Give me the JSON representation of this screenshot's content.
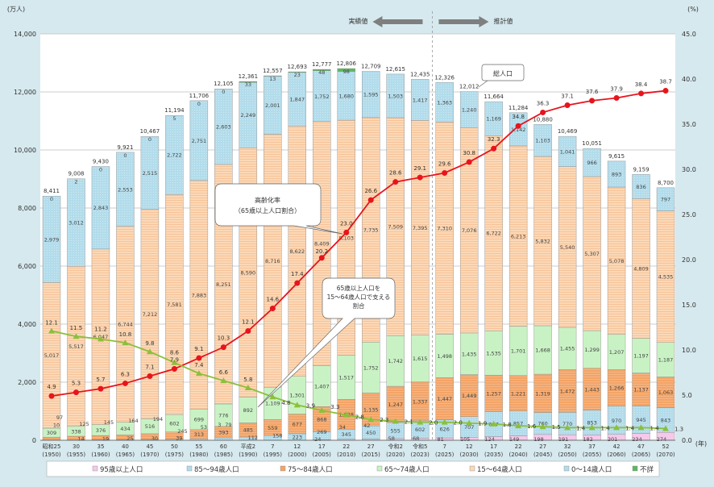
{
  "chart_data": {
    "type": "bar",
    "stacked": true,
    "left_axis_unit": "(万人)",
    "right_axis_unit": "(%)",
    "x_unit": "(年)",
    "ylim": [
      0,
      14000
    ],
    "y_ticks": [
      "0",
      "2,000",
      "4,000",
      "6,000",
      "8,000",
      "10,000",
      "12,000",
      "14,000"
    ],
    "y2lim": [
      0,
      45
    ],
    "y2_ticks": [
      "0.0",
      "5.0",
      "10.0",
      "15.0",
      "20.0",
      "25.0",
      "30.0",
      "35.0",
      "40.0",
      "45.0"
    ],
    "grid": true,
    "legend_position": "bottom",
    "header": {
      "actual": "実績値",
      "projected": "推計値"
    },
    "callouts": {
      "total": "総人口",
      "aging_rate": [
        "高齢化率",
        "（65歳以上人口割合）"
      ],
      "support_ratio": [
        "65歳以上人口を",
        "15～64歳人口で支える",
        "割合"
      ]
    },
    "categories": [
      [
        "昭和25",
        "(1950)"
      ],
      [
        "30",
        "(1955)"
      ],
      [
        "35",
        "(1960)"
      ],
      [
        "40",
        "(1965)"
      ],
      [
        "45",
        "(1970)"
      ],
      [
        "50",
        "(1975)"
      ],
      [
        "55",
        "(1980)"
      ],
      [
        "60",
        "(1985)"
      ],
      [
        "平成2",
        "(1990)"
      ],
      [
        "7",
        "(1995)"
      ],
      [
        "12",
        "(2000)"
      ],
      [
        "17",
        "(2005)"
      ],
      [
        "22",
        "(2010)"
      ],
      [
        "27",
        "(2015)"
      ],
      [
        "令和2",
        "(2020)"
      ],
      [
        "令和5",
        "(2023)"
      ],
      [
        "7",
        "(2025)"
      ],
      [
        "12",
        "(2030)"
      ],
      [
        "17",
        "(2035)"
      ],
      [
        "22",
        "(2040)"
      ],
      [
        "27",
        "(2045)"
      ],
      [
        "32",
        "(2050)"
      ],
      [
        "37",
        "(2055)"
      ],
      [
        "42",
        "(2060)"
      ],
      [
        "47",
        "(2065)"
      ],
      [
        "52",
        "(2070)"
      ]
    ],
    "projection_starts_index": 16,
    "totals": [
      "8,411",
      "9,008",
      "9,430",
      "9,921",
      "10,467",
      "11,194",
      "11,706",
      "12,105",
      "12,361",
      "12,557",
      "12,693",
      "12,777",
      "12,806",
      "12,709",
      "12,615",
      "12,435",
      "12,326",
      "12,012",
      "11,664",
      "11,284",
      "10,880",
      "10,469",
      "10,051",
      "9,615",
      "9,159",
      "8,700"
    ],
    "series": [
      {
        "name": "95歳以上人口",
        "color": "#f6c8ea",
        "values": [
          0,
          0,
          0,
          0,
          0,
          0,
          0,
          3,
          0,
          0,
          0,
          24,
          34,
          42,
          58,
          68,
          81,
          105,
          124,
          149,
          198,
          191,
          182,
          201,
          234,
          274
        ]
      },
      {
        "name": "85～94歳人口",
        "color": "#bfe2ef",
        "values": [
          10,
          14,
          19,
          25,
          30,
          39,
          53,
          79,
          112,
          158,
          223,
          269,
          345,
          450,
          555,
          602,
          626,
          707,
          857,
          857,
          760,
          770,
          853,
          970,
          945,
          843
        ]
      },
      {
        "name": "75～84歳人口",
        "color": "#f3a466",
        "values": [
          97,
          125,
          145,
          164,
          194,
          245,
          313,
          393,
          485,
          559,
          677,
          868,
          1028,
          1135,
          1247,
          1337,
          1447,
          1449,
          1257,
          1221,
          1319,
          1472,
          1443,
          1266,
          1137,
          1063
        ]
      },
      {
        "name": "65～74歳人口",
        "color": "#c9f2c4",
        "values": [
          309,
          338,
          376,
          434,
          516,
          602,
          699,
          776,
          892,
          1109,
          1301,
          1407,
          1517,
          1752,
          1742,
          1615,
          1498,
          1435,
          1535,
          1701,
          1668,
          1455,
          1299,
          1207,
          1197,
          1187
        ]
      },
      {
        "name": "15～64歳人口",
        "color": "#fcd8b6",
        "values": [
          5017,
          5517,
          6047,
          6744,
          7212,
          7581,
          7883,
          8251,
          8590,
          8716,
          8622,
          8409,
          8103,
          7735,
          7509,
          7395,
          7310,
          7076,
          6722,
          6213,
          5832,
          5540,
          5307,
          5078,
          4809,
          4535
        ]
      },
      {
        "name": "0～14歳人口",
        "color": "#b3dceb",
        "values": [
          2979,
          3012,
          2843,
          2553,
          2515,
          2722,
          2751,
          2603,
          2249,
          2001,
          1847,
          1752,
          1680,
          1595,
          1503,
          1417,
          1363,
          1240,
          1169,
          1142,
          1103,
          1041,
          966,
          893,
          836,
          797
        ]
      },
      {
        "name": "不詳",
        "color": "#5cb860",
        "values": [
          0,
          2,
          0,
          0,
          0,
          5,
          0,
          0,
          33,
          13,
          23,
          48,
          98,
          null,
          null,
          null,
          null,
          null,
          null,
          null,
          null,
          null,
          null,
          null,
          null,
          null
        ]
      }
    ],
    "lines": [
      {
        "name": "高齢化率（65歳以上人口割合）",
        "axis": "right",
        "color": "#e8141c",
        "marker": "circle",
        "values": [
          4.9,
          5.3,
          5.7,
          6.3,
          7.1,
          7.9,
          9.1,
          10.3,
          12.1,
          14.6,
          17.4,
          20.2,
          23.0,
          26.6,
          28.6,
          29.1,
          29.6,
          30.8,
          32.3,
          34.8,
          36.3,
          37.1,
          37.6,
          37.9,
          38.4,
          38.7
        ]
      },
      {
        "name": "65歳以上人口を15～64歳人口で支える割合",
        "axis": "right",
        "color": "#8cbf3c",
        "marker": "triangle",
        "values": [
          12.1,
          11.5,
          11.2,
          10.8,
          9.8,
          8.6,
          7.4,
          6.6,
          5.8,
          4.8,
          3.9,
          3.3,
          2.8,
          2.3,
          2.1,
          2.0,
          2.0,
          1.9,
          1.8,
          1.6,
          1.5,
          1.4,
          1.4,
          1.4,
          1.4,
          1.3
        ]
      }
    ]
  }
}
